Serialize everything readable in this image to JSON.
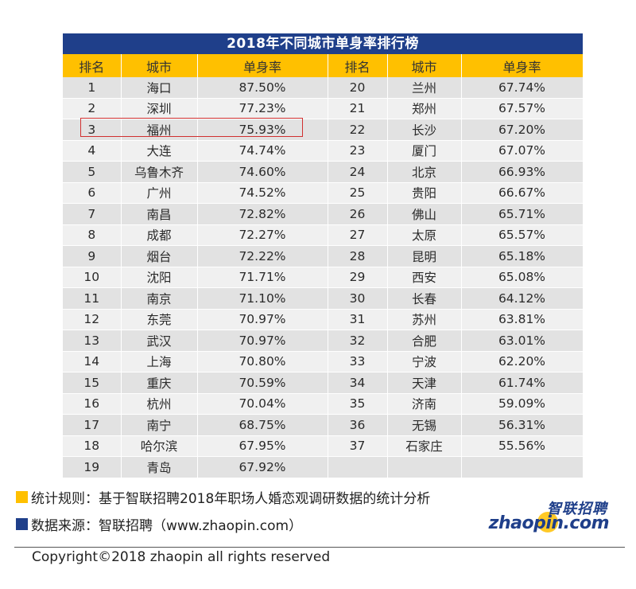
{
  "title": "2018年不同城市单身率排行榜",
  "headers": [
    "排名",
    "城市",
    "单身率",
    "排名",
    "城市",
    "单身率"
  ],
  "chart_data": {
    "type": "table",
    "title": "2018年不同城市单身率排行榜",
    "columns": [
      "排名",
      "城市",
      "单身率"
    ],
    "rows": [
      {
        "rank": "1",
        "city": "海口",
        "rate": "87.50%"
      },
      {
        "rank": "2",
        "city": "深圳",
        "rate": "77.23%"
      },
      {
        "rank": "3",
        "city": "福州",
        "rate": "75.93%"
      },
      {
        "rank": "4",
        "city": "大连",
        "rate": "74.74%"
      },
      {
        "rank": "5",
        "city": "乌鲁木齐",
        "rate": "74.60%"
      },
      {
        "rank": "6",
        "city": "广州",
        "rate": "74.52%"
      },
      {
        "rank": "7",
        "city": "南昌",
        "rate": "72.82%"
      },
      {
        "rank": "8",
        "city": "成都",
        "rate": "72.27%"
      },
      {
        "rank": "9",
        "city": "烟台",
        "rate": "72.22%"
      },
      {
        "rank": "10",
        "city": "沈阳",
        "rate": "71.71%"
      },
      {
        "rank": "11",
        "city": "南京",
        "rate": "71.10%"
      },
      {
        "rank": "12",
        "city": "东莞",
        "rate": "70.97%"
      },
      {
        "rank": "13",
        "city": "武汉",
        "rate": "70.97%"
      },
      {
        "rank": "14",
        "city": "上海",
        "rate": "70.80%"
      },
      {
        "rank": "15",
        "city": "重庆",
        "rate": "70.59%"
      },
      {
        "rank": "16",
        "city": "杭州",
        "rate": "70.04%"
      },
      {
        "rank": "17",
        "city": "南宁",
        "rate": "68.75%"
      },
      {
        "rank": "18",
        "city": "哈尔滨",
        "rate": "67.95%"
      },
      {
        "rank": "19",
        "city": "青岛",
        "rate": "67.92%"
      },
      {
        "rank": "20",
        "city": "兰州",
        "rate": "67.74%"
      },
      {
        "rank": "21",
        "city": "郑州",
        "rate": "67.57%"
      },
      {
        "rank": "22",
        "city": "长沙",
        "rate": "67.20%"
      },
      {
        "rank": "23",
        "city": "厦门",
        "rate": "67.07%"
      },
      {
        "rank": "24",
        "city": "北京",
        "rate": "66.93%"
      },
      {
        "rank": "25",
        "city": "贵阳",
        "rate": "66.67%"
      },
      {
        "rank": "26",
        "city": "佛山",
        "rate": "65.71%"
      },
      {
        "rank": "27",
        "city": "太原",
        "rate": "65.57%"
      },
      {
        "rank": "28",
        "city": "昆明",
        "rate": "65.18%"
      },
      {
        "rank": "29",
        "city": "西安",
        "rate": "65.08%"
      },
      {
        "rank": "30",
        "city": "长春",
        "rate": "64.12%"
      },
      {
        "rank": "31",
        "city": "苏州",
        "rate": "63.81%"
      },
      {
        "rank": "32",
        "city": "合肥",
        "rate": "63.01%"
      },
      {
        "rank": "33",
        "city": "宁波",
        "rate": "62.20%"
      },
      {
        "rank": "34",
        "city": "天津",
        "rate": "61.74%"
      },
      {
        "rank": "35",
        "city": "济南",
        "rate": "59.09%"
      },
      {
        "rank": "36",
        "city": "无锡",
        "rate": "56.31%"
      },
      {
        "rank": "37",
        "city": "石家庄",
        "rate": "55.56%"
      }
    ],
    "highlighted_rank": "3"
  },
  "footer": {
    "rule": "统计规则：基于智联招聘2018年职场人婚恋观调研数据的统计分析",
    "source": "数据来源：智联招聘（www.zhaopin.com）",
    "copyright": "Copyright©2018 zhaopin all rights reserved"
  },
  "logo": {
    "cn": "智联招聘",
    "en": "zhaopin.com"
  },
  "colors": {
    "title_bg": "#1f3f8a",
    "header_bg": "#ffc000",
    "row_light": "#f0f0f0",
    "row_dark": "#e2e2e2",
    "highlight_border": "#d03030",
    "bullet_rule": "#ffc000",
    "bullet_source": "#1f3f8a"
  }
}
